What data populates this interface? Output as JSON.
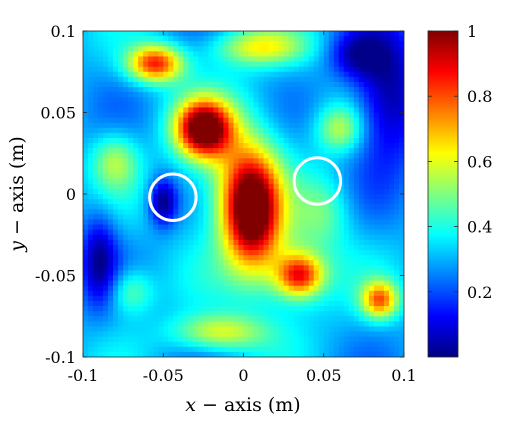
{
  "chart_data": {
    "type": "heatmap",
    "title": "",
    "xlabel": {
      "var": "x",
      "text": " − axis (m)"
    },
    "ylabel": {
      "var": "y",
      "text": " − axis (m)"
    },
    "xlim": [
      -0.1,
      0.1
    ],
    "ylim": [
      -0.1,
      0.1
    ],
    "x_ticks": [
      "-0.1",
      "-0.05",
      "0",
      "0.05",
      "0.1"
    ],
    "y_ticks": [
      "-0.1",
      "-0.05",
      "0",
      "0.05",
      "0.1"
    ],
    "colorbar": {
      "colormap": "jet",
      "range": [
        0,
        1
      ],
      "ticks": [
        "0.2",
        "0.4",
        "0.6",
        "0.8",
        "1"
      ]
    },
    "field_peaks": [
      {
        "x": 0.005,
        "y": -0.01,
        "sx": 0.012,
        "sy": 0.022,
        "amp": 0.74
      },
      {
        "x": -0.025,
        "y": 0.04,
        "sx": 0.012,
        "sy": 0.012,
        "amp": 0.74
      },
      {
        "x": 0.035,
        "y": -0.05,
        "sx": 0.01,
        "sy": 0.009,
        "amp": 0.48
      },
      {
        "x": -0.005,
        "y": 0.015,
        "sx": 0.02,
        "sy": 0.03,
        "amp": 0.22
      },
      {
        "x": 0.025,
        "y": -0.045,
        "sx": 0.022,
        "sy": 0.02,
        "amp": 0.2
      },
      {
        "x": -0.055,
        "y": 0.08,
        "sx": 0.012,
        "sy": 0.008,
        "amp": 0.55
      },
      {
        "x": 0.085,
        "y": -0.065,
        "sx": 0.008,
        "sy": 0.008,
        "amp": 0.45
      },
      {
        "x": -0.015,
        "y": -0.085,
        "sx": 0.02,
        "sy": 0.008,
        "amp": 0.3
      },
      {
        "x": 0.01,
        "y": 0.09,
        "sx": 0.02,
        "sy": 0.008,
        "amp": 0.3
      },
      {
        "x": 0.06,
        "y": 0.04,
        "sx": 0.01,
        "sy": 0.01,
        "amp": 0.25
      },
      {
        "x": -0.07,
        "y": -0.06,
        "sx": 0.01,
        "sy": 0.01,
        "amp": 0.2
      },
      {
        "x": -0.08,
        "y": 0.02,
        "sx": 0.01,
        "sy": 0.012,
        "amp": 0.22
      },
      {
        "x": 0.05,
        "y": -0.01,
        "sx": 0.012,
        "sy": 0.015,
        "amp": 0.15
      }
    ],
    "field_dips": [
      {
        "x": -0.05,
        "y": -0.005,
        "sx": 0.006,
        "sy": 0.01,
        "amp": 0.3
      },
      {
        "x": 0.09,
        "y": 0.06,
        "sx": 0.015,
        "sy": 0.03,
        "amp": 0.3
      },
      {
        "x": -0.09,
        "y": -0.04,
        "sx": 0.008,
        "sy": 0.02,
        "amp": 0.25
      },
      {
        "x": 0.07,
        "y": 0.085,
        "sx": 0.012,
        "sy": 0.01,
        "amp": 0.2
      }
    ],
    "field_wave": {
      "amp": 0.08,
      "freq": 60
    },
    "field_base": 0.3,
    "annotations": [
      {
        "type": "circle",
        "cx": -0.044,
        "cy": -0.002,
        "r": 0.0145,
        "color": "#ffffff"
      },
      {
        "type": "circle",
        "cx": 0.046,
        "cy": 0.008,
        "r": 0.0145,
        "color": "#ffffff"
      }
    ]
  }
}
